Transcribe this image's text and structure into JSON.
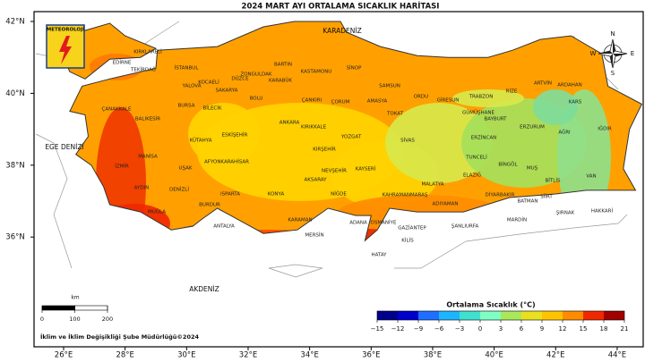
{
  "title": "2024 MART AYI ORTALAMA SICAKLIK HARİTASI",
  "seas": [
    "KARADENİZ",
    "EGE DENİZİ",
    "AKDENİZ"
  ],
  "logo": "METEOROLOJİ",
  "compass": [
    "N",
    "S",
    "W",
    "E"
  ],
  "footer": "İklim ve İklim Değişikliği Şube Müdürlüğü©2024",
  "xticks": [
    {
      "value": 26,
      "label": "26°E"
    },
    {
      "value": 28,
      "label": "28°E"
    },
    {
      "value": 30,
      "label": "30°E"
    },
    {
      "value": 32,
      "label": "32°E"
    },
    {
      "value": 34,
      "label": "34°E"
    },
    {
      "value": 36,
      "label": "36°E"
    },
    {
      "value": 38,
      "label": "38°E"
    },
    {
      "value": 40,
      "label": "40°E"
    },
    {
      "value": 42,
      "label": "42°E"
    },
    {
      "value": 44,
      "label": "44°E"
    }
  ],
  "yticks": [
    {
      "value": 42,
      "label": "42°N"
    },
    {
      "value": 40,
      "label": "40°N"
    },
    {
      "value": 38,
      "label": "38°N"
    },
    {
      "value": 36,
      "label": "36°N"
    }
  ],
  "scale_bar": {
    "unit": "km",
    "ticks": [
      0,
      100,
      200
    ]
  },
  "legend": {
    "title": "Ortalama Sıcaklık (°C)",
    "ticks": [
      {
        "value": -15,
        "label": "−15"
      },
      {
        "value": -12,
        "label": "−12"
      },
      {
        "value": -9,
        "label": "−9"
      },
      {
        "value": -6,
        "label": "−6"
      },
      {
        "value": -3,
        "label": "−3"
      },
      0,
      3,
      6,
      9,
      12,
      15,
      18,
      21
    ],
    "colors": [
      "#00008b",
      "#0000cd",
      "#1e6fff",
      "#1eb4ff",
      "#40e0d0",
      "#7fffc4",
      "#a8e85a",
      "#e8e020",
      "#ffc400",
      "#ff8c00",
      "#f02800",
      "#a00000"
    ]
  },
  "provinces": [
    "EDİRNE",
    "KIRKLARELİ",
    "TEKİRDAĞ",
    "İSTANBUL",
    "KOCAELİ",
    "SAKARYA",
    "DÜZCE",
    "YALOVA",
    "ZONGULDAK",
    "BARTIN",
    "KARABÜK",
    "KASTAMONU",
    "SİNOP",
    "SAMSUN",
    "ORDU",
    "GİRESUN",
    "TRABZON",
    "RİZE",
    "ARTVİN",
    "ARDAHAN",
    "KARS",
    "IĞDIR",
    "AĞRI",
    "ERZURUM",
    "BAYBURT",
    "GÜMÜŞHANE",
    "ERZİNCAN",
    "TUNCELİ",
    "BİNGÖL",
    "MUŞ",
    "BİTLİS",
    "VAN",
    "HAKKARİ",
    "ŞIRNAK",
    "SİİRT",
    "BATMAN",
    "MARDİN",
    "DİYARBAKIR",
    "ELAZIĞ",
    "MALATYA",
    "ADIYAMAN",
    "ŞANLIURFA",
    "GAZİANTEP",
    "KİLİS",
    "OSMANİYE",
    "ADANA",
    "HATAY",
    "KAHRAMANMARAŞ",
    "KAYSERİ",
    "SİVAS",
    "TOKAT",
    "AMASYA",
    "ÇORUM",
    "YOZGAT",
    "KIRIKKALE",
    "KIRŞEHİR",
    "NEVŞEHİR",
    "AKSARAY",
    "NİĞDE",
    "KONYA",
    "KARAMAN",
    "MERSİN",
    "ANTALYA",
    "BURDUR",
    "ISPARTA",
    "DENİZLİ",
    "MUĞLA",
    "AYDIN",
    "İZMİR",
    "MANİSA",
    "UŞAK",
    "AFYONKARAHİSAR",
    "KÜTAHYA",
    "ESKİŞEHİR",
    "BİLECİK",
    "BURSA",
    "BALIKESİR",
    "ÇANAKKALE",
    "BOLU",
    "ANKARA",
    "ÇANKIRI"
  ]
}
